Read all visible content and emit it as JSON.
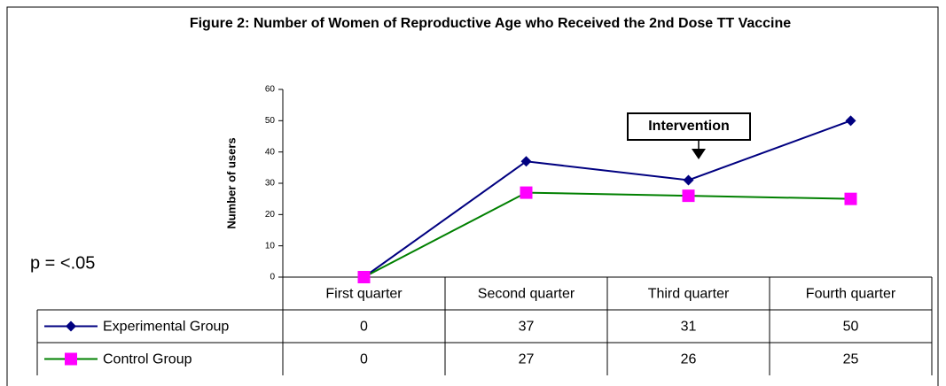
{
  "chart_data": {
    "type": "line",
    "title": "Figure 2: Number of Women of Reproductive Age who Received the 2nd Dose TT Vaccine",
    "y_label": "Number of users",
    "categories": [
      "First quarter",
      "Second quarter",
      "Third quarter",
      "Fourth quarter"
    ],
    "series": [
      {
        "name": "Experimental Group",
        "color": "#000080",
        "marker_color": "#000080",
        "marker": "diamond",
        "values": [
          0,
          37,
          31,
          50
        ]
      },
      {
        "name": "Control Group",
        "color": "#008000",
        "marker_color": "#ff00ff",
        "marker": "square",
        "values": [
          0,
          27,
          26,
          25
        ]
      }
    ],
    "ylim": [
      0,
      60
    ],
    "yticks": [
      0,
      10,
      20,
      30,
      40,
      50,
      60
    ],
    "grid": false,
    "data_table": true,
    "annotations": [
      "Intervention",
      "p = <.05"
    ]
  }
}
